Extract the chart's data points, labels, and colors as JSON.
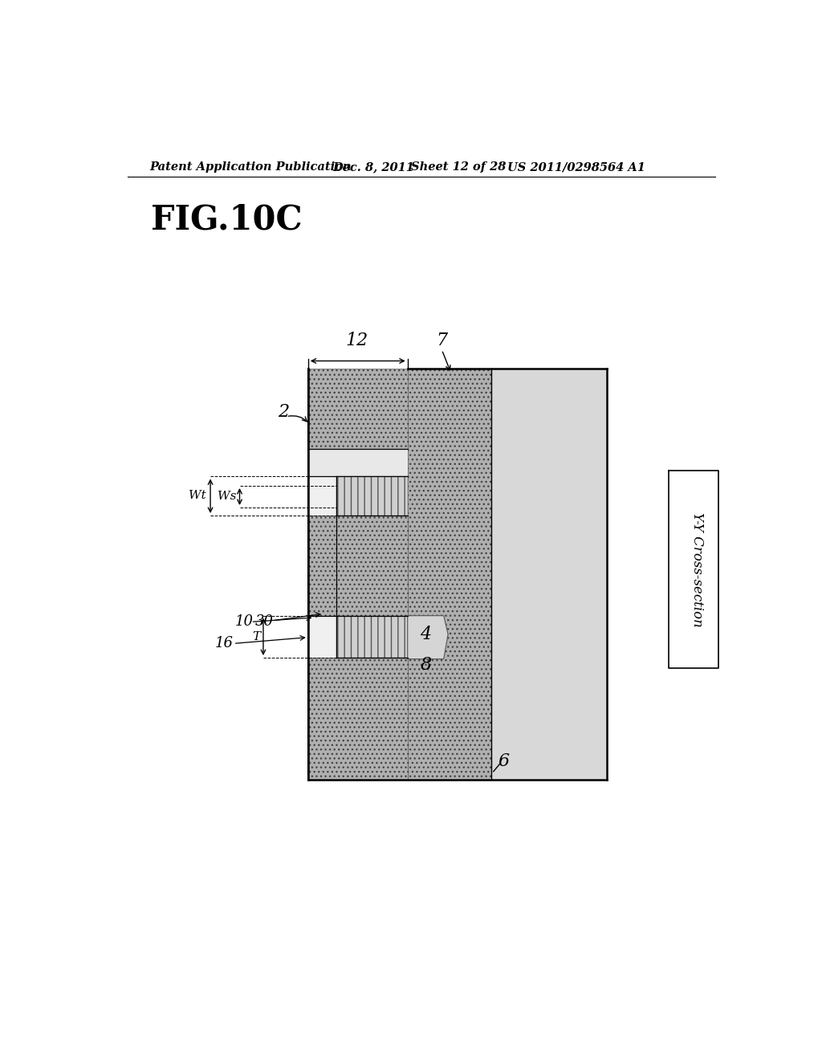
{
  "title_header": "Patent Application Publication",
  "date_text": "Dec. 8, 2011",
  "sheet_text": "Sheet 12 of 28",
  "patent_text": "US 2011/0298564 A1",
  "fig_label": "FIG.10C",
  "bg_color": "#ffffff",
  "label_2": "2",
  "label_4": "4",
  "label_6": "6",
  "label_7": "7",
  "label_8": "8",
  "label_12": "12",
  "label_16": "16",
  "label_10": "10",
  "label_30": "30",
  "label_Wt": "Wt",
  "label_Ws": "Ws",
  "label_T": "T",
  "label_yy": "Y-Y Cross-section"
}
